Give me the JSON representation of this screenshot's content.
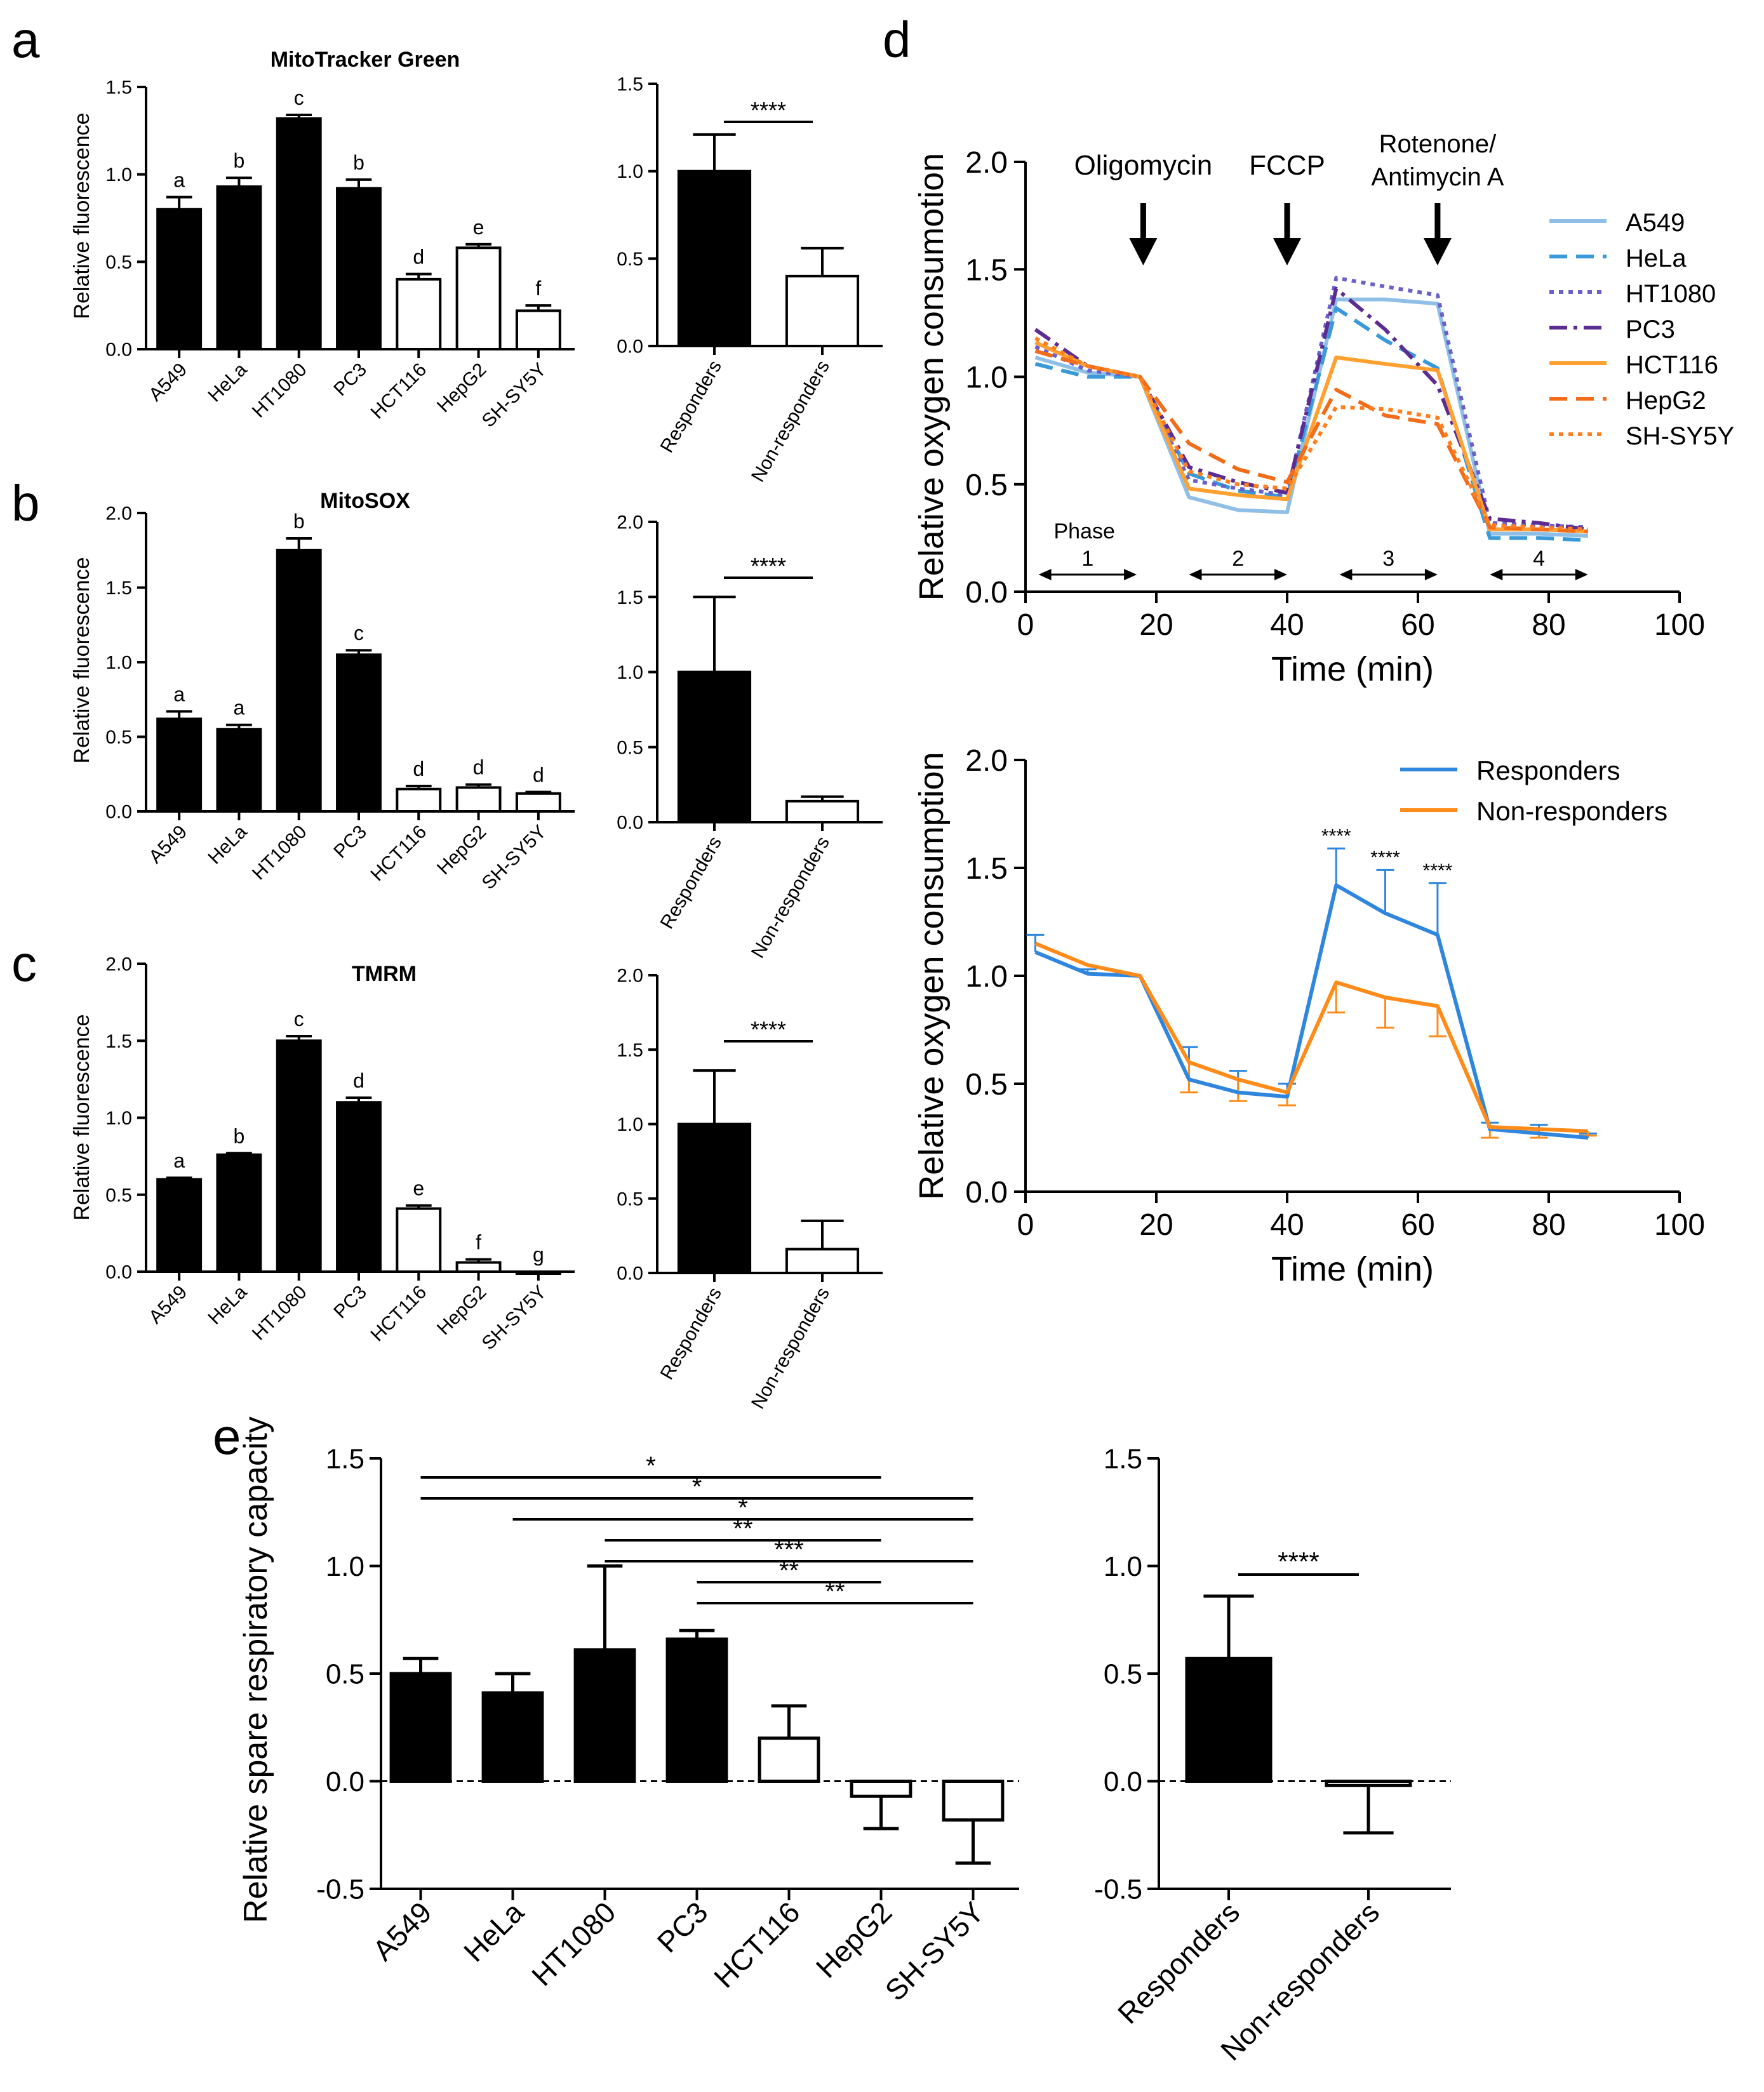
{
  "panel_labels": [
    "a",
    "b",
    "c",
    "d",
    "e"
  ],
  "colors": {
    "responder_bar": "#000000",
    "nonresponder_bar": "#ffffff",
    "Responders": "#2e86de",
    "Non-responders": "#ff8c1a"
  },
  "chart_data": [
    {
      "id": "a_cells",
      "type": "bar",
      "title": "MitoTracker Green",
      "ylabel": "Relative fluorescence",
      "ylim": [
        0,
        1.5
      ],
      "yticks": [
        "0.0",
        "0.5",
        "1.0",
        "1.5"
      ],
      "categories": [
        "A549",
        "HeLa",
        "HT1080",
        "PC3",
        "HCT116",
        "HepG2",
        "SH-SY5Y"
      ],
      "values": [
        0.8,
        0.93,
        1.32,
        0.92,
        0.4,
        0.58,
        0.22
      ],
      "errors": [
        0.07,
        0.05,
        0.02,
        0.05,
        0.03,
        0.02,
        0.03
      ],
      "filled": [
        true,
        true,
        true,
        true,
        false,
        false,
        false
      ],
      "letters": [
        "a",
        "b",
        "c",
        "b",
        "d",
        "e",
        "f"
      ]
    },
    {
      "id": "a_groups",
      "type": "bar",
      "ylim": [
        0,
        1.5
      ],
      "yticks": [
        "0.0",
        "0.5",
        "1.0",
        "1.5"
      ],
      "categories": [
        "Responders",
        "Non-responders"
      ],
      "values": [
        1.0,
        0.4
      ],
      "errors": [
        0.21,
        0.16
      ],
      "filled": [
        true,
        false
      ],
      "significance": "****"
    },
    {
      "id": "b_cells",
      "type": "bar",
      "title": "MitoSOX",
      "ylabel": "Relative fluorescence",
      "ylim": [
        0,
        2.0
      ],
      "yticks": [
        "0.0",
        "0.5",
        "1.0",
        "1.5",
        "2.0"
      ],
      "categories": [
        "A549",
        "HeLa",
        "HT1080",
        "PC3",
        "HCT116",
        "HepG2",
        "SH-SY5Y"
      ],
      "values": [
        0.62,
        0.55,
        1.75,
        1.05,
        0.15,
        0.16,
        0.12
      ],
      "errors": [
        0.05,
        0.03,
        0.08,
        0.03,
        0.02,
        0.02,
        0.01
      ],
      "filled": [
        true,
        true,
        true,
        true,
        false,
        false,
        false
      ],
      "letters": [
        "a",
        "a",
        "b",
        "c",
        "d",
        "d",
        "d"
      ]
    },
    {
      "id": "b_groups",
      "type": "bar",
      "ylim": [
        0,
        2.0
      ],
      "yticks": [
        "0.0",
        "0.5",
        "1.0",
        "1.5",
        "2.0"
      ],
      "categories": [
        "Responders",
        "Non-responders"
      ],
      "values": [
        1.0,
        0.14
      ],
      "errors": [
        0.5,
        0.03
      ],
      "filled": [
        true,
        false
      ],
      "significance": "****"
    },
    {
      "id": "c_cells",
      "type": "bar",
      "title": "TMRM",
      "ylabel": "Relative fluorescence",
      "ylim": [
        0,
        2.0
      ],
      "yticks": [
        "0.0",
        "0.5",
        "1.0",
        "1.5",
        "2.0"
      ],
      "categories": [
        "A549",
        "HeLa",
        "HT1080",
        "PC3",
        "HCT116",
        "HepG2",
        "SH-SY5Y"
      ],
      "values": [
        0.6,
        0.76,
        1.5,
        1.1,
        0.41,
        0.06,
        0.0
      ],
      "errors": [
        0.01,
        0.01,
        0.03,
        0.03,
        0.02,
        0.02,
        0.0
      ],
      "filled": [
        true,
        true,
        true,
        true,
        false,
        false,
        false
      ],
      "letters": [
        "a",
        "b",
        "c",
        "d",
        "e",
        "f",
        "g"
      ]
    },
    {
      "id": "c_groups",
      "type": "bar",
      "ylim": [
        0,
        2.0
      ],
      "yticks": [
        "0.0",
        "0.5",
        "1.0",
        "1.5",
        "2.0"
      ],
      "categories": [
        "Responders",
        "Non-responders"
      ],
      "values": [
        1.0,
        0.16
      ],
      "errors": [
        0.36,
        0.19
      ],
      "filled": [
        true,
        false
      ],
      "significance": "****"
    },
    {
      "id": "d_cells",
      "type": "line",
      "xlabel": "Time (min)",
      "ylabel": "Relative oxygen consumotion",
      "xlim": [
        0,
        100
      ],
      "ylim": [
        0,
        2.0
      ],
      "xticks": [
        "0",
        "20",
        "40",
        "60",
        "80",
        "100"
      ],
      "yticks": [
        "0.0",
        "0.5",
        "1.0",
        "1.5",
        "2.0"
      ],
      "x": [
        1.5,
        9.5,
        17.5,
        25,
        32.5,
        40,
        47.5,
        55,
        63,
        71,
        78.5,
        86
      ],
      "series": [
        {
          "name": "A549",
          "color": "#8fbfe6",
          "dash": "",
          "values": [
            1.09,
            1.02,
            1.0,
            0.44,
            0.38,
            0.37,
            1.36,
            1.36,
            1.34,
            0.27,
            0.27,
            0.26
          ]
        },
        {
          "name": "HeLa",
          "color": "#3a9ad9",
          "dash": "28 14",
          "values": [
            1.06,
            1.0,
            1.0,
            0.55,
            0.47,
            0.44,
            1.32,
            1.17,
            1.04,
            0.25,
            0.25,
            0.24
          ]
        },
        {
          "name": "HT1080",
          "color": "#6b5fc9",
          "dash": "7 8",
          "values": [
            1.14,
            1.03,
            1.0,
            0.52,
            0.48,
            0.45,
            1.46,
            1.42,
            1.38,
            0.32,
            0.31,
            0.3
          ]
        },
        {
          "name": "PC3",
          "color": "#5b2c91",
          "dash": "28 10 6 10",
          "values": [
            1.22,
            1.05,
            1.0,
            0.58,
            0.51,
            0.46,
            1.41,
            1.22,
            0.96,
            0.34,
            0.32,
            0.29
          ]
        },
        {
          "name": "HCT116",
          "color": "#ffa030",
          "dash": "",
          "values": [
            1.16,
            1.05,
            1.0,
            0.48,
            0.45,
            0.43,
            1.09,
            1.06,
            1.03,
            0.29,
            0.29,
            0.28
          ]
        },
        {
          "name": "HepG2",
          "color": "#f26c1a",
          "dash": "28 14",
          "values": [
            1.12,
            1.05,
            1.0,
            0.69,
            0.57,
            0.51,
            0.94,
            0.82,
            0.78,
            0.3,
            0.29,
            0.28
          ]
        },
        {
          "name": "SH-SY5Y",
          "color": "#ff7f1e",
          "dash": "7 8",
          "values": [
            1.18,
            1.05,
            1.0,
            0.56,
            0.5,
            0.48,
            0.86,
            0.85,
            0.81,
            0.31,
            0.3,
            0.29
          ]
        }
      ],
      "injections": [
        "Oligomycin",
        "FCCP",
        "Rotenone/",
        "Antimycin A"
      ],
      "injection_times": [
        18,
        40,
        63
      ],
      "phase_label": "Phase",
      "phases": [
        {
          "label": "1",
          "from": 2,
          "to": 17
        },
        {
          "label": "2",
          "from": 25,
          "to": 40
        },
        {
          "label": "3",
          "from": 48,
          "to": 63
        },
        {
          "label": "4",
          "from": 71,
          "to": 86
        }
      ]
    },
    {
      "id": "d_groups",
      "type": "line",
      "xlabel": "Time (min)",
      "ylabel": "Relative oxygen consumption",
      "xlim": [
        0,
        100
      ],
      "ylim": [
        0,
        2.0
      ],
      "xticks": [
        "0",
        "20",
        "40",
        "60",
        "80",
        "100"
      ],
      "yticks": [
        "0.0",
        "0.5",
        "1.0",
        "1.5",
        "2.0"
      ],
      "x": [
        1.5,
        9.5,
        17.5,
        25,
        32.5,
        40,
        47.5,
        55,
        63,
        71,
        78.5,
        86
      ],
      "series": [
        {
          "name": "Responders",
          "color": "#2e86de",
          "values": [
            1.11,
            1.01,
            1.0,
            0.52,
            0.46,
            0.44,
            1.42,
            1.29,
            1.19,
            0.29,
            0.27,
            0.25
          ],
          "errors": [
            0.08,
            0.02,
            0.0,
            0.15,
            0.1,
            0.06,
            0.17,
            0.2,
            0.24,
            0.03,
            0.04,
            0.02
          ],
          "err_dir": 1
        },
        {
          "name": "Non-responders",
          "color": "#ff8c1a",
          "values": [
            1.15,
            1.05,
            1.0,
            0.6,
            0.52,
            0.46,
            0.97,
            0.9,
            0.86,
            0.3,
            0.29,
            0.28
          ],
          "errors": [
            0.0,
            0.0,
            0.0,
            0.14,
            0.1,
            0.06,
            0.14,
            0.14,
            0.14,
            0.05,
            0.04,
            0.02
          ],
          "err_dir": -1
        }
      ],
      "significance": [
        "****",
        "****",
        "****"
      ],
      "significance_at": [
        47.5,
        55,
        63
      ]
    },
    {
      "id": "e_cells",
      "type": "bar",
      "ylabel": "Relative spare respiratory capacity",
      "ylim": [
        -0.5,
        1.5
      ],
      "yticks": [
        "-0.5",
        "0.0",
        "0.5",
        "1.0",
        "1.5"
      ],
      "categories": [
        "A549",
        "HeLa",
        "HT1080",
        "PC3",
        "HCT116",
        "HepG2",
        "SH-SY5Y"
      ],
      "values": [
        0.5,
        0.41,
        0.61,
        0.66,
        0.2,
        -0.07,
        -0.18
      ],
      "errors": [
        0.07,
        0.09,
        0.39,
        0.04,
        0.15,
        0.15,
        0.2
      ],
      "filled": [
        true,
        true,
        true,
        true,
        false,
        false,
        false
      ],
      "comparisons": [
        {
          "a": 0,
          "b": 5,
          "label": "*"
        },
        {
          "a": 0,
          "b": 6,
          "label": "*"
        },
        {
          "a": 1,
          "b": 6,
          "label": "*"
        },
        {
          "a": 2,
          "b": 5,
          "label": "**"
        },
        {
          "a": 2,
          "b": 6,
          "label": "***"
        },
        {
          "a": 3,
          "b": 5,
          "label": "**"
        },
        {
          "a": 3,
          "b": 6,
          "label": "**"
        }
      ]
    },
    {
      "id": "e_groups",
      "type": "bar",
      "ylim": [
        -0.5,
        1.5
      ],
      "yticks": [
        "-0.5",
        "0.0",
        "0.5",
        "1.0",
        "1.5"
      ],
      "categories": [
        "Responders",
        "Non-responders"
      ],
      "values": [
        0.57,
        -0.02
      ],
      "errors": [
        0.29,
        0.22
      ],
      "filled": [
        true,
        false
      ],
      "significance": "****"
    }
  ]
}
